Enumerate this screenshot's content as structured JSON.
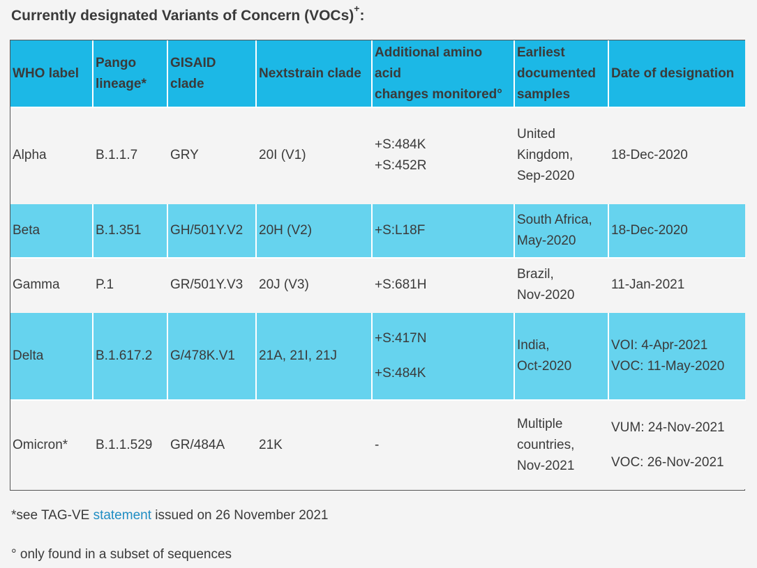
{
  "title": {
    "text": "Currently designated Variants of Concern (VOCs)",
    "sup": "+",
    "suffix": ":"
  },
  "table": {
    "headers": {
      "who": "WHO label",
      "pango": [
        "Pango",
        "lineage*"
      ],
      "gisaid": [
        "GISAID",
        "clade"
      ],
      "nextstrain": "Nextstrain clade",
      "amino": [
        "Additional amino",
        "acid",
        "changes monitored°"
      ],
      "earliest": [
        "Earliest",
        "documented",
        "samples"
      ],
      "designation": "Date of designation"
    },
    "rows": [
      {
        "who": "Alpha",
        "pango": "B.1.1.7",
        "gisaid": "GRY",
        "nextstrain": "20I (V1)",
        "amino": [
          "+S:484K",
          "+S:452R"
        ],
        "earliest": [
          "United",
          "Kingdom,",
          "Sep-2020"
        ],
        "designation": [
          "18-Dec-2020"
        ]
      },
      {
        "who": "Beta",
        "pango": "B.1.351",
        "gisaid": "GH/501Y.V2",
        "nextstrain": "20H (V2)",
        "amino": [
          "+S:L18F"
        ],
        "earliest": [
          "South Africa,",
          "May-2020"
        ],
        "designation": [
          "18-Dec-2020"
        ]
      },
      {
        "who": "Gamma",
        "pango": "P.1",
        "gisaid": "GR/501Y.V3",
        "nextstrain": "20J (V3)",
        "amino": [
          "+S:681H"
        ],
        "earliest": [
          "Brazil,",
          "Nov-2020"
        ],
        "designation": [
          "11-Jan-2021"
        ]
      },
      {
        "who": "Delta",
        "pango": "B.1.617.2",
        "gisaid": "G/478K.V1",
        "nextstrain": "21A, 21I, 21J",
        "amino": [
          "+S:417N",
          "+S:484K"
        ],
        "earliest": [
          "India,",
          "Oct-2020"
        ],
        "designation": [
          "VOI: 4-Apr-2021",
          "VOC: 11-May-2020"
        ]
      },
      {
        "who": "Omicron*",
        "pango": "B.1.1.529",
        "gisaid": "GR/484A",
        "nextstrain": "21K",
        "amino": [
          "-"
        ],
        "earliest": [
          "Multiple",
          "countries,",
          "Nov-2021"
        ],
        "designation": [
          "VUM: 24-Nov-2021",
          "VOC: 26-Nov-2021"
        ]
      }
    ]
  },
  "footnotes": {
    "note1_prefix": "*see TAG-VE ",
    "note1_link": "statement",
    "note1_suffix": " issued on 26 November 2021",
    "note2": "° only found in a subset of sequences"
  },
  "colors": {
    "header_bg": "#1cb8e6",
    "highlight_row_bg": "#66d3ee",
    "page_bg": "#f4f4f4",
    "link": "#1f8dc3"
  }
}
